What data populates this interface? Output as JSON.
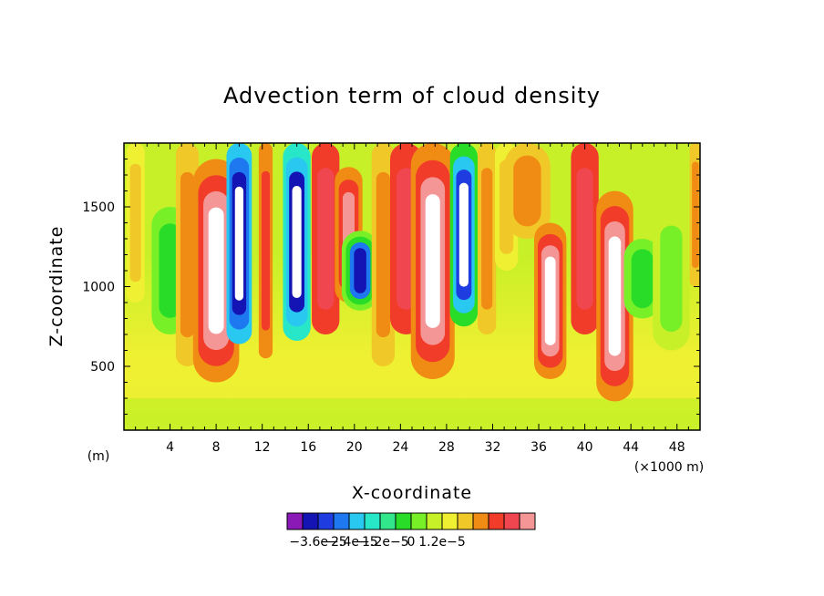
{
  "chart_data": {
    "type": "heatmap",
    "title": "Advection term of cloud density",
    "xlabel": "X-coordinate",
    "ylabel": "Z-coordinate",
    "x_unit_label": "(×1000 m)",
    "y_unit_label": "(m)",
    "xlim": [
      0,
      50
    ],
    "ylim": [
      100,
      1900
    ],
    "x_ticks": [
      "4",
      "8",
      "12",
      "16",
      "20",
      "24",
      "28",
      "32",
      "36",
      "40",
      "44",
      "48"
    ],
    "x_tick_values": [
      4,
      8,
      12,
      16,
      20,
      24,
      28,
      32,
      36,
      40,
      44,
      48
    ],
    "y_ticks": [
      "500",
      "1000",
      "1500"
    ],
    "y_tick_values": [
      500,
      1000,
      1500
    ],
    "colorbar": {
      "colors": [
        "#8a19b8",
        "#1414b4",
        "#1e3ce0",
        "#1e78f0",
        "#28c8f0",
        "#28e6c8",
        "#32e68c",
        "#28dc28",
        "#78f028",
        "#c8f028",
        "#f0f032",
        "#f0c828",
        "#f08c14",
        "#f03c28",
        "#f04650",
        "#f59696"
      ],
      "labels": [
        "−3.6e−5",
        "−2.4e−5",
        "−1.2e−5",
        "0",
        "1.2e−5"
      ],
      "label_values": [
        -3.6e-05,
        -2.4e-05,
        -1.2e-05,
        0,
        1.2e-05
      ]
    },
    "features": [
      {
        "kind": "negative_core",
        "x": 10,
        "z_top": 1900,
        "z_bottom": 650,
        "min_value": -3.6e-05
      },
      {
        "kind": "negative_core",
        "x": 15,
        "z_top": 1900,
        "z_bottom": 680,
        "min_value": -3.6e-05
      },
      {
        "kind": "negative_core",
        "x": 20.5,
        "z_top": 1300,
        "z_bottom": 900,
        "min_value": -2.4e-05
      },
      {
        "kind": "negative_core",
        "x": 30,
        "z_top": 1900,
        "z_bottom": 800,
        "min_value": -2.4e-05
      },
      {
        "kind": "positive_core",
        "x": 8,
        "z_top": 1750,
        "z_bottom": 400,
        "max_value": 1.8e-05
      },
      {
        "kind": "positive_core",
        "x": 27,
        "z_top": 1900,
        "z_bottom": 450,
        "max_value": 1.8e-05
      },
      {
        "kind": "positive_core",
        "x": 37,
        "z_top": 1300,
        "z_bottom": 450,
        "max_value": 1.8e-05
      },
      {
        "kind": "positive_core",
        "x": 42.5,
        "z_top": 1500,
        "z_bottom": 300,
        "max_value": 1.8e-05
      }
    ]
  }
}
